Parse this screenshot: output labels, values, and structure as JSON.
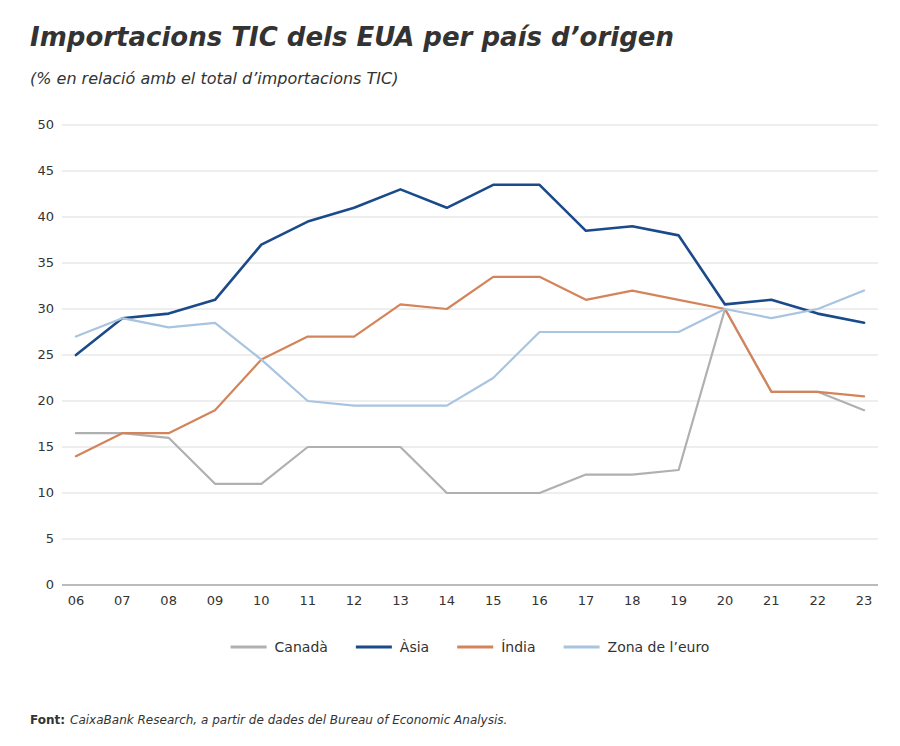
{
  "chart_data": {
    "type": "line",
    "title": "Importacions TIC dels EUA per país d’origen",
    "subtitle": "(% en relació amb el total d’importacions TIC)",
    "categories": [
      "06",
      "07",
      "08",
      "09",
      "10",
      "11",
      "12",
      "13",
      "14",
      "15",
      "16",
      "17",
      "18",
      "19",
      "20",
      "21",
      "22",
      "23"
    ],
    "series": [
      {
        "name": "Canadà",
        "color": "#b0b0b0",
        "values": [
          16.5,
          16.5,
          16.0,
          11.0,
          11.0,
          15.0,
          15.0,
          15.0,
          10.0,
          10.0,
          10.0,
          12.0,
          12.0,
          12.5,
          30.0,
          21.0,
          21.0,
          19.0
        ]
      },
      {
        "name": "Àsia",
        "color": "#1a4a8a",
        "values": [
          25.0,
          29.0,
          29.5,
          31.0,
          37.0,
          39.5,
          41.0,
          43.0,
          41.0,
          43.5,
          43.5,
          38.5,
          39.0,
          38.0,
          30.5,
          31.0,
          29.5,
          28.5
        ]
      },
      {
        "name": "Índia",
        "color": "#d4845a",
        "values": [
          14.0,
          16.5,
          16.5,
          19.0,
          24.5,
          27.0,
          27.0,
          30.5,
          30.0,
          33.5,
          33.5,
          31.0,
          32.0,
          31.0,
          30.0,
          21.0,
          21.0,
          20.5
        ]
      },
      {
        "name": "Zona de l’euro",
        "color": "#a8c4e0",
        "values": [
          27.0,
          29.0,
          28.0,
          28.5,
          24.5,
          20.0,
          19.5,
          19.5,
          19.5,
          22.5,
          27.5,
          27.5,
          27.5,
          27.5,
          30.0,
          29.0,
          30.0,
          32.0
        ]
      }
    ],
    "ylim": [
      0,
      50
    ],
    "yticks": [
      0,
      5,
      10,
      15,
      20,
      25,
      30,
      35,
      40,
      45,
      50
    ],
    "grid": true,
    "legend": "bottom",
    "source_label": "Font:",
    "source": "CaixaBank Research, a partir de dades del Bureau of Economic Analysis."
  }
}
